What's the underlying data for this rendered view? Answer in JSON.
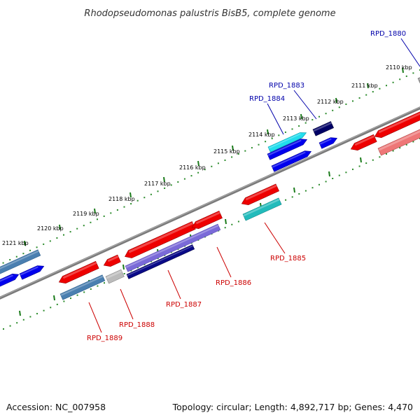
{
  "title": "Rhodopseudomonas palustris BisB5, complete genome",
  "footer": {
    "accession": "Accession: NC_007958",
    "topology": "Topology: circular; Length: 4,892,717 bp; Genes: 4,470"
  },
  "colors": {
    "backbone": "#808080",
    "forward_label": "#0000aa",
    "reverse_label": "#cc0000",
    "tick_dots": "#228822"
  },
  "ticks": [
    {
      "label": "2110 kbp"
    },
    {
      "label": "2111 kbp"
    },
    {
      "label": "2112 kbp"
    },
    {
      "label": "2113 kbp"
    },
    {
      "label": "2114 kbp"
    },
    {
      "label": "2115 kbp"
    },
    {
      "label": "2116 kbp"
    },
    {
      "label": "2117 kbp"
    },
    {
      "label": "2118 kbp"
    },
    {
      "label": "2119 kbp"
    },
    {
      "label": "2120 kbp"
    },
    {
      "label": "2121 kbp"
    }
  ],
  "gene_labels": [
    {
      "name": "RPD_1880",
      "strand": "forward"
    },
    {
      "name": "RPD_1883",
      "strand": "forward"
    },
    {
      "name": "RPD_1884",
      "strand": "forward"
    },
    {
      "name": "RPD_1885",
      "strand": "reverse"
    },
    {
      "name": "RPD_1886",
      "strand": "reverse"
    },
    {
      "name": "RPD_1887",
      "strand": "reverse"
    },
    {
      "name": "RPD_1888",
      "strand": "reverse"
    },
    {
      "name": "RPD_1889",
      "strand": "reverse"
    }
  ]
}
